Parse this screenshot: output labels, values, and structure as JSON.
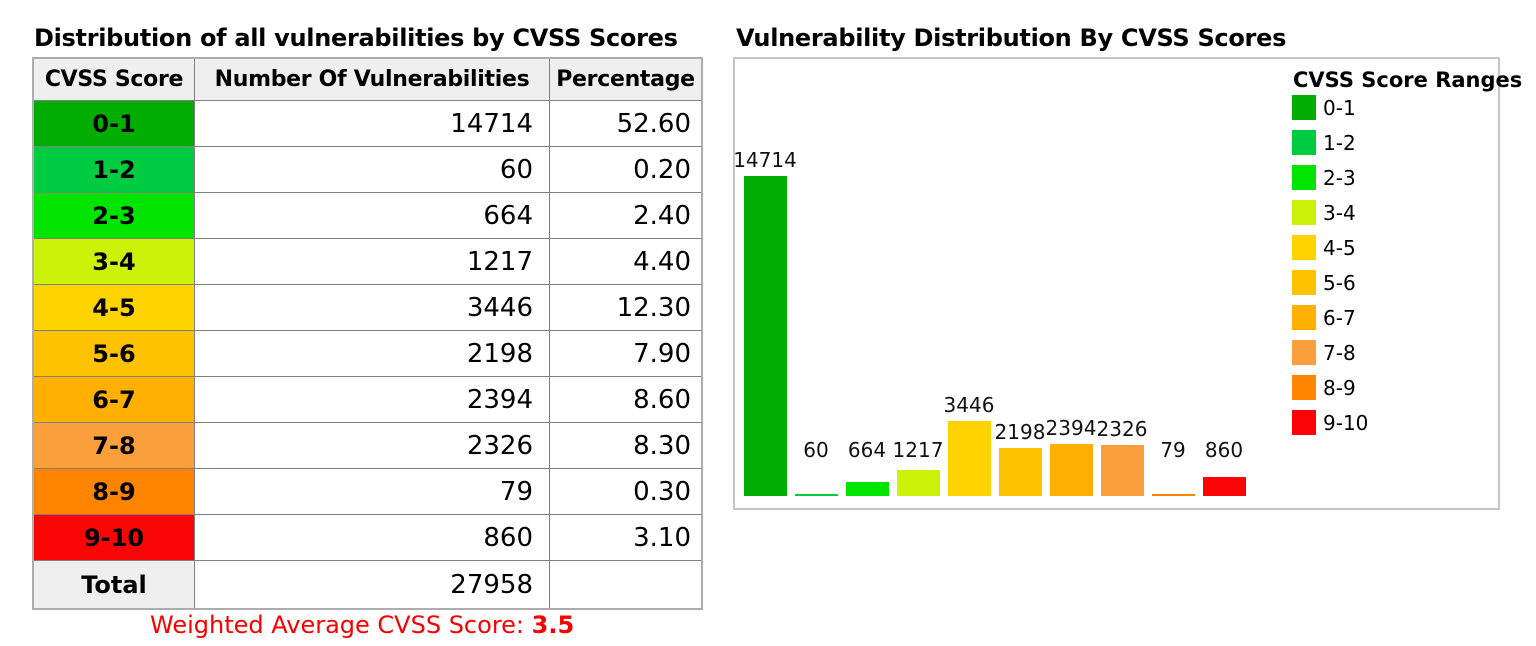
{
  "left_panel": {
    "title": "Distribution of all vulnerabilities by CVSS Scores",
    "table": {
      "headers": [
        "CVSS Score",
        "Number Of Vulnerabilities",
        "Percentage"
      ],
      "rows": [
        {
          "range": "0-1",
          "count": "14714",
          "pct": "52.60",
          "color": "#00AD00"
        },
        {
          "range": "1-2",
          "count": "60",
          "pct": "0.20",
          "color": "#00CC41"
        },
        {
          "range": "2-3",
          "count": "664",
          "pct": "2.40",
          "color": "#00E400"
        },
        {
          "range": "3-4",
          "count": "1217",
          "pct": "4.40",
          "color": "#CCF20A"
        },
        {
          "range": "4-5",
          "count": "3446",
          "pct": "12.30",
          "color": "#FFD300"
        },
        {
          "range": "5-6",
          "count": "2198",
          "pct": "7.90",
          "color": "#FFC200"
        },
        {
          "range": "6-7",
          "count": "2394",
          "pct": "8.60",
          "color": "#FFB000"
        },
        {
          "range": "7-8",
          "count": "2326",
          "pct": "8.30",
          "color": "#FB9E3C"
        },
        {
          "range": "8-9",
          "count": "79",
          "pct": "0.30",
          "color": "#FF8400"
        },
        {
          "range": "9-10",
          "count": "860",
          "pct": "3.10",
          "color": "#FA0505"
        }
      ],
      "total_label": "Total",
      "total_count": "27958",
      "total_pct": ""
    },
    "weighted_avg_label": "Weighted Average CVSS Score: ",
    "weighted_avg_value": "3.5"
  },
  "right_panel": {
    "title": "Vulnerability Distribution By CVSS Scores"
  },
  "chart_data": {
    "type": "bar",
    "title": "Vulnerability Distribution By CVSS Scores",
    "categories": [
      "0-1",
      "1-2",
      "2-3",
      "3-4",
      "4-5",
      "5-6",
      "6-7",
      "7-8",
      "8-9",
      "9-10"
    ],
    "values": [
      14714,
      60,
      664,
      1217,
      3446,
      2198,
      2394,
      2326,
      79,
      860
    ],
    "colors": [
      "#00AD00",
      "#00CC41",
      "#00E400",
      "#CCF20A",
      "#FFD300",
      "#FFC200",
      "#FFB000",
      "#FB9E3C",
      "#FF8400",
      "#FA0505"
    ],
    "legend_title": "CVSS Score Ranges",
    "legend_position": "right",
    "data_labels": true,
    "xlabel": "",
    "ylabel": "",
    "ylim": [
      0,
      15000
    ],
    "grid": false,
    "axes_visible": false
  }
}
